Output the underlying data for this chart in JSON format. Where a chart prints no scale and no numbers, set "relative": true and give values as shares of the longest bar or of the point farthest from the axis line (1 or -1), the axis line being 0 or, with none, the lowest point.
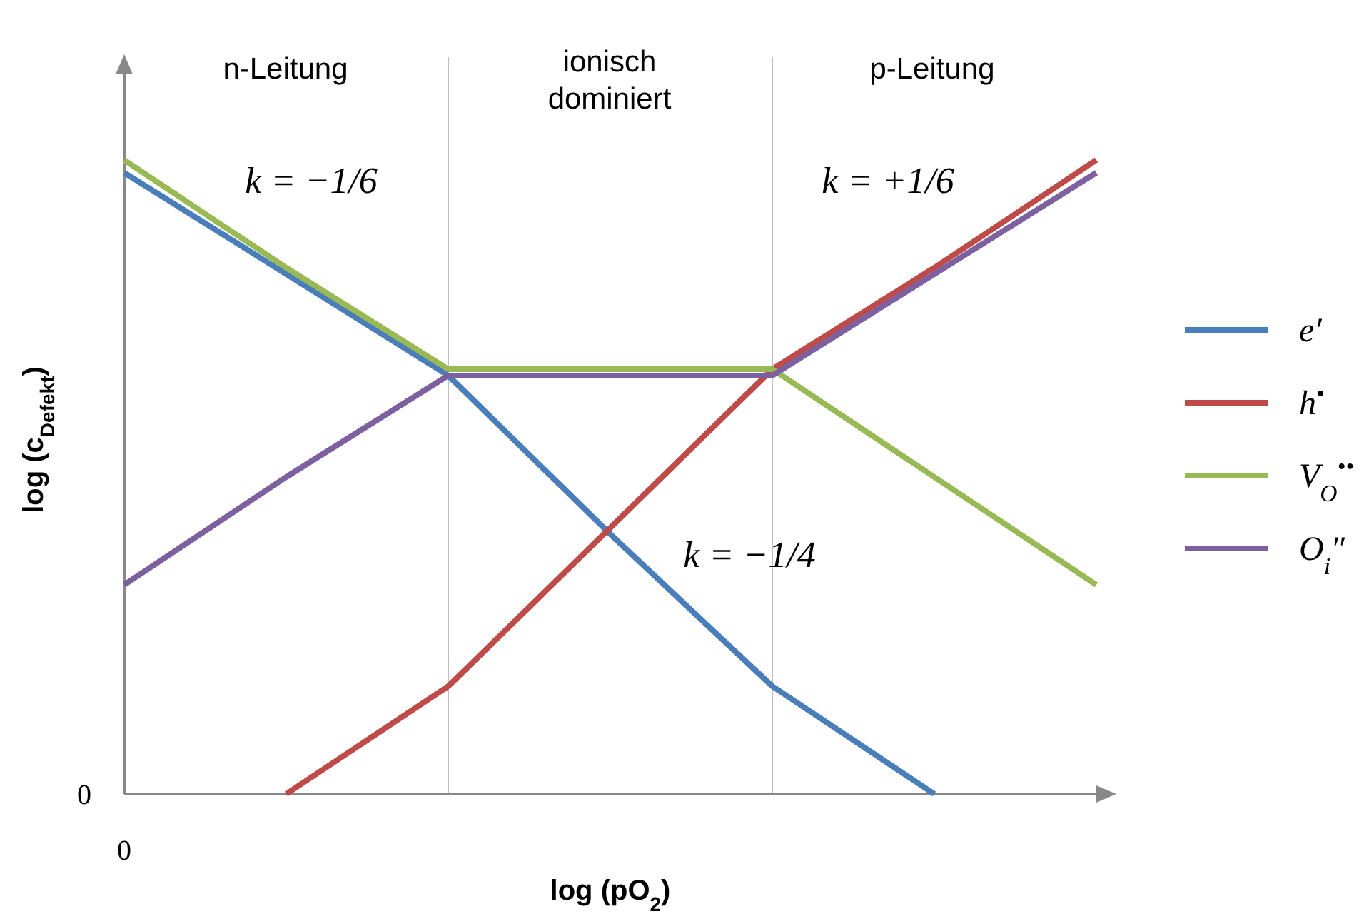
{
  "chart_data": {
    "type": "line",
    "relative": true,
    "xlabel": "log (pO$_{2}$)",
    "ylabel": "log (c$_{Defekt}$)",
    "categories": [
      null,
      null,
      null,
      null,
      null,
      null,
      null
    ],
    "series": [
      {
        "name": "e′",
        "color": "#4a7ebb",
        "values": [
          0.98,
          0.82,
          0.66,
          0.41,
          0.17,
          0,
          null
        ]
      },
      {
        "name": "h$^{•}$",
        "color": "#be4b48",
        "values": [
          null,
          0,
          0.17,
          0.42,
          0.67,
          0.83,
          1
        ]
      },
      {
        "name": "V$_{O}$$^{••}$",
        "color": "#98b954",
        "values": [
          1,
          0.83,
          0.67,
          0.67,
          0.67,
          0.5,
          0.33
        ]
      },
      {
        "name": "O$_{i}$″",
        "color": "#7d60a0",
        "values": [
          0.33,
          0.5,
          0.66,
          0.66,
          0.66,
          0.82,
          0.98
        ]
      }
    ],
    "annotations": [
      "n-Leitung",
      "ionisch dominiert",
      "p-Leitung",
      "k = −1/6",
      "k = +1/6",
      "k = −1/4",
      "0",
      "0"
    ],
    "legend": "right",
    "line_style": "solid",
    "marker": "none"
  }
}
